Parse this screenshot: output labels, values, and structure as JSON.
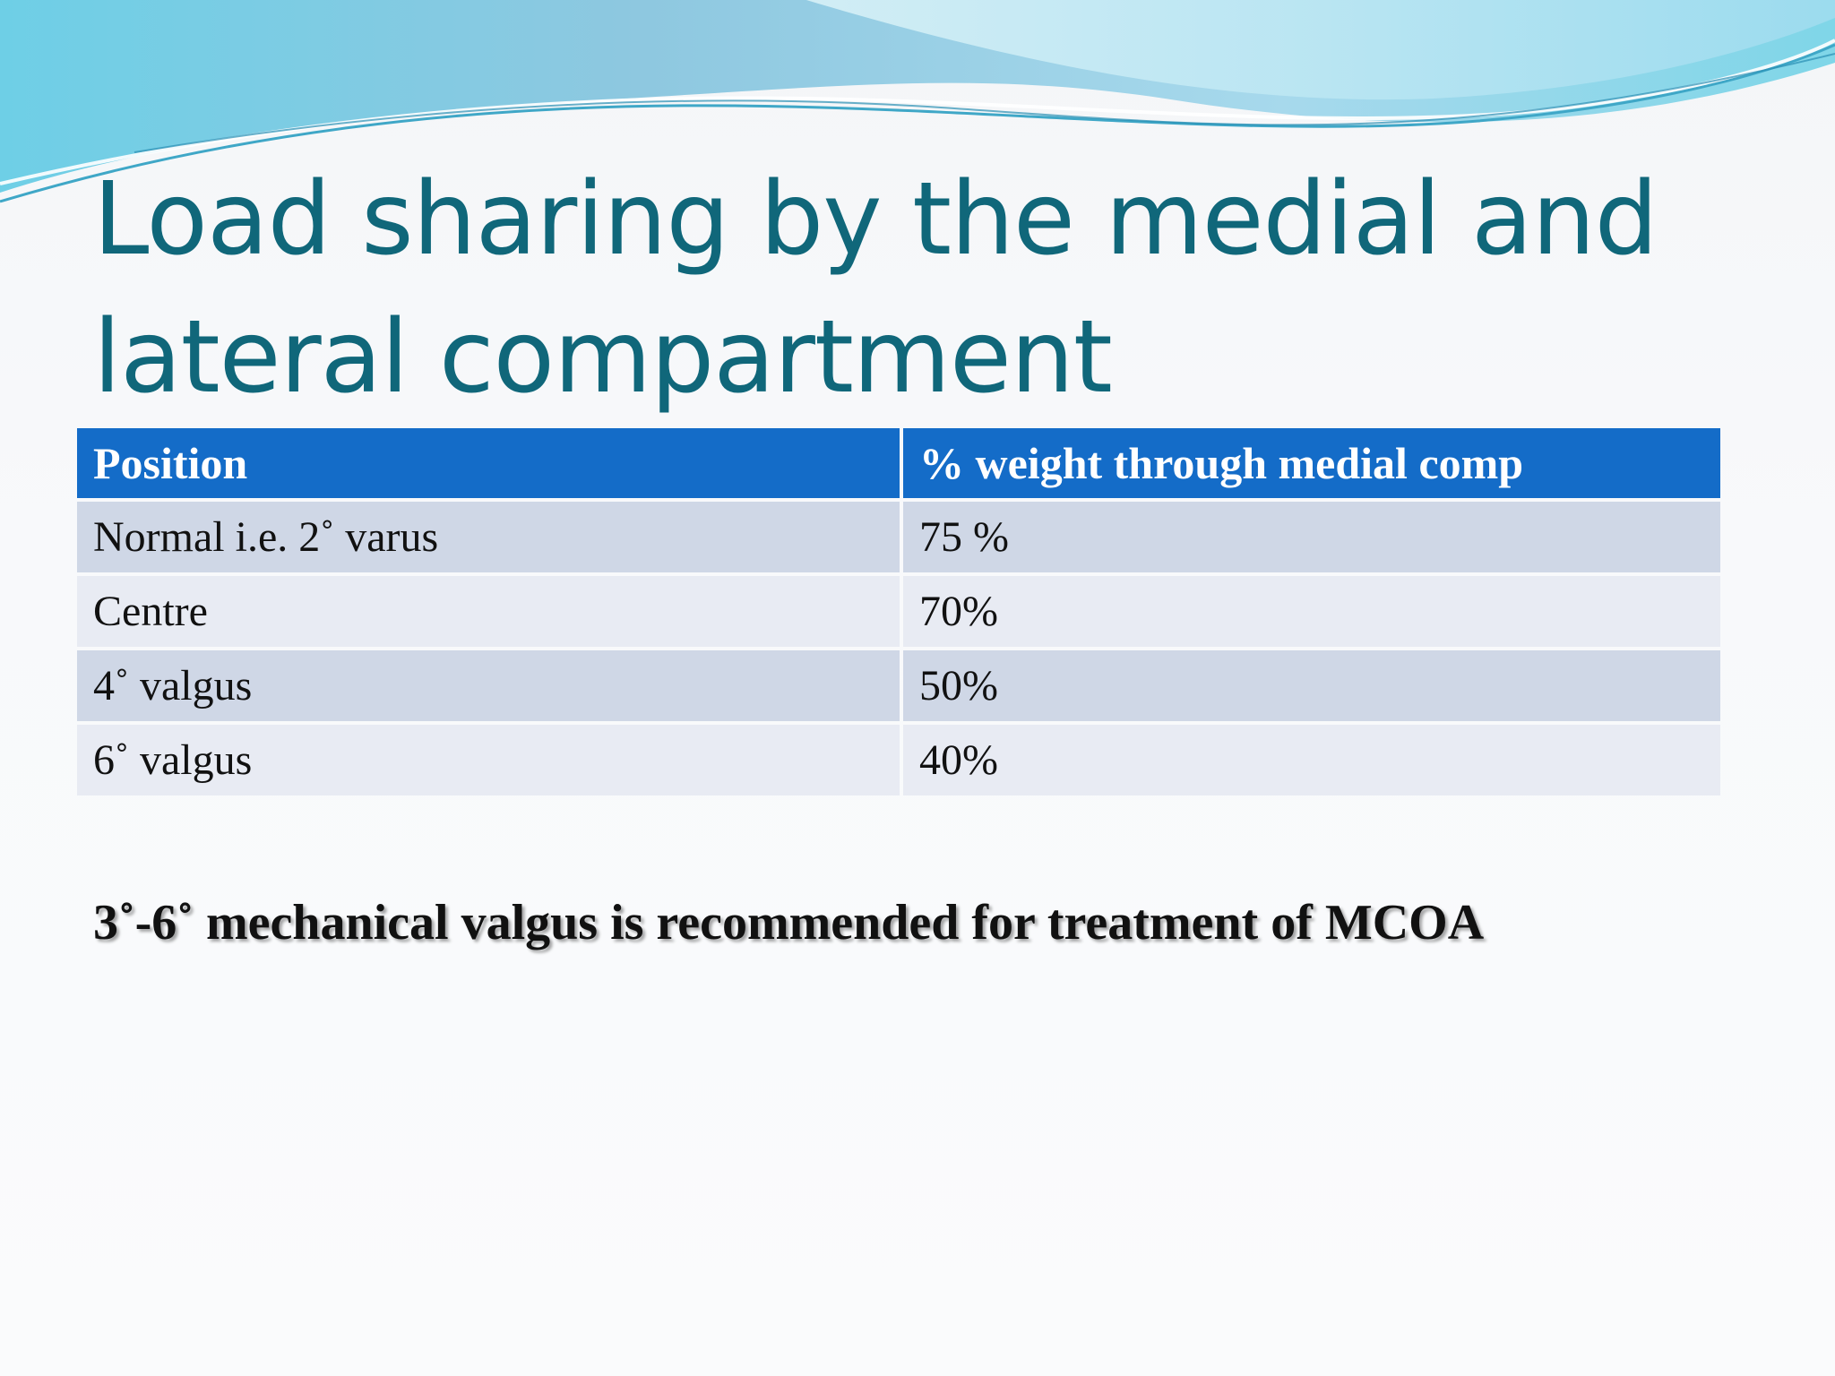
{
  "slide": {
    "title_line1": "Load sharing by the medial and",
    "title_line2": "lateral compartment",
    "table": {
      "headers": [
        "Position",
        "% weight through medial comp"
      ],
      "rows": [
        [
          "Normal i.e. 2˚ varus",
          "75 %"
        ],
        [
          "Centre",
          "70%"
        ],
        [
          "4˚ valgus",
          "50%"
        ],
        [
          "6˚ valgus",
          "40%"
        ]
      ]
    },
    "note": "3˚-6˚ mechanical valgus is recommended for treatment of MCOA"
  },
  "colors": {
    "title": "#10677a",
    "header_bg": "#146cc8",
    "row_odd_bg": "#cfd7e6",
    "row_even_bg": "#e8ebf3",
    "wave_light": "#bfe7f0",
    "wave_dark": "#5fb5d4"
  }
}
